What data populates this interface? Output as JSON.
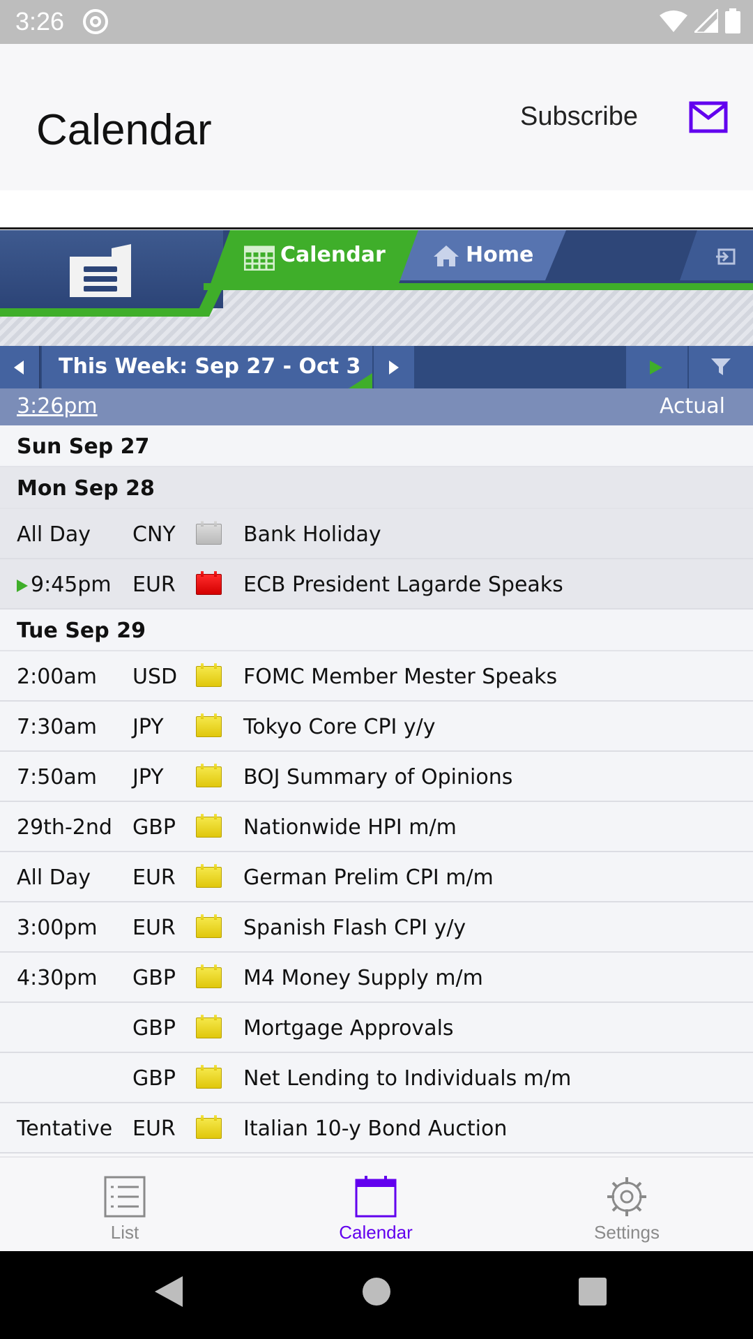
{
  "status_bar": {
    "time": "3:26"
  },
  "app_bar": {
    "title": "Calendar",
    "subscribe_label": "Subscribe"
  },
  "web_tabs": {
    "calendar": "Calendar",
    "home": "Home"
  },
  "week_nav": {
    "label": "This Week: Sep 27 - Oct 3"
  },
  "time_bar": {
    "now": "3:26pm",
    "actual": "Actual"
  },
  "days": [
    {
      "label": "Sun Sep 27",
      "events": []
    },
    {
      "label": "Mon Sep 28",
      "events": [
        {
          "time": "All Day",
          "currency": "CNY",
          "impact": "none",
          "title": "Bank Holiday"
        },
        {
          "time": "9:45pm",
          "currency": "EUR",
          "impact": "high",
          "title": "ECB President Lagarde Speaks",
          "next": true
        }
      ]
    },
    {
      "label": "Tue Sep 29",
      "events": [
        {
          "time": "2:00am",
          "currency": "USD",
          "impact": "low",
          "title": "FOMC Member Mester Speaks"
        },
        {
          "time": "7:30am",
          "currency": "JPY",
          "impact": "low",
          "title": "Tokyo Core CPI y/y"
        },
        {
          "time": "7:50am",
          "currency": "JPY",
          "impact": "low",
          "title": "BOJ Summary of Opinions"
        },
        {
          "time": "29th-2nd",
          "currency": "GBP",
          "impact": "low",
          "title": "Nationwide HPI m/m"
        },
        {
          "time": "All Day",
          "currency": "EUR",
          "impact": "low",
          "title": "German Prelim CPI m/m"
        },
        {
          "time": "3:00pm",
          "currency": "EUR",
          "impact": "low",
          "title": "Spanish Flash CPI y/y"
        },
        {
          "time": "4:30pm",
          "currency": "GBP",
          "impact": "low",
          "title": "M4 Money Supply m/m"
        },
        {
          "time": "",
          "currency": "GBP",
          "impact": "low",
          "title": "Mortgage Approvals"
        },
        {
          "time": "",
          "currency": "GBP",
          "impact": "low",
          "title": "Net Lending to Individuals m/m"
        },
        {
          "time": "Tentative",
          "currency": "EUR",
          "impact": "low",
          "title": "Italian 10-y Bond Auction"
        }
      ]
    }
  ],
  "bottom_nav": {
    "items": [
      {
        "label": "List",
        "icon": "list-icon"
      },
      {
        "label": "Calendar",
        "icon": "calendar-icon",
        "active": true
      },
      {
        "label": "Settings",
        "icon": "gear-icon"
      }
    ]
  },
  "colors": {
    "accent": "#6200ee",
    "brand_green": "#3fae2a",
    "brand_blue": "#2f4a7e"
  }
}
